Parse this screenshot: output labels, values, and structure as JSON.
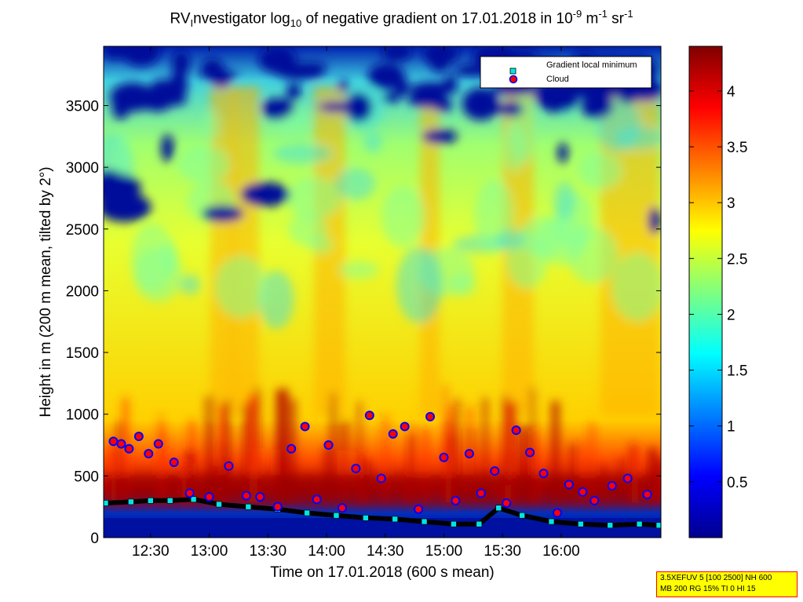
{
  "title": {
    "prefix": "RV",
    "sub1": "I",
    "middle": "nvestigator log",
    "sub2": "10",
    "rest": " of negative gradient on 17.01.2018 in 10",
    "sup1": "-9",
    "unit1": " m",
    "sup2": "-1",
    "unit2": " sr",
    "sup3": "-1"
  },
  "info_box": {
    "line1": "3.5XEFUV 5 [100 2500] NH 600",
    "line2": "MB 200 RG 15% TI 0 HI 15"
  },
  "colors": {
    "point_marker_fill": "#00e5e5",
    "cloud_marker_fill": "#ff0000",
    "cloud_marker_edge": "#0000ff",
    "dark_line": "#000000"
  },
  "chart_data": {
    "type": "heatmap",
    "xlabel": "Time on 17.01.2018 (600 s mean)",
    "ylabel": "Height in m (200 m mean, tilted by 2°)",
    "x_ticks": [
      "12:30",
      "13:00",
      "13:30",
      "14:00",
      "14:30",
      "15:00",
      "15:30",
      "16:00"
    ],
    "x_tick_minutes": [
      750,
      780,
      810,
      840,
      870,
      900,
      930,
      960
    ],
    "xlim_minutes": [
      726,
      1011
    ],
    "y_ticks": [
      0,
      500,
      1000,
      1500,
      2000,
      2500,
      3000,
      3500
    ],
    "ylim": [
      0,
      3980
    ],
    "colorbar": {
      "colormap": "jet",
      "range": [
        0,
        4.4
      ],
      "ticks": [
        0.5,
        1,
        1.5,
        2,
        2.5,
        3,
        3.5,
        4
      ]
    },
    "legend": {
      "position": "top-right",
      "entries": [
        "Gradient local minimum",
        "Cloud"
      ]
    },
    "series": [
      {
        "name": "Gradient local minimum",
        "marker": "square",
        "x": [
          727,
          740,
          750,
          760,
          772,
          785,
          800,
          815,
          830,
          845,
          860,
          875,
          890,
          905,
          918,
          928,
          940,
          955,
          970,
          985,
          1000,
          1010
        ],
        "y": [
          280,
          290,
          300,
          300,
          310,
          270,
          250,
          230,
          200,
          180,
          160,
          150,
          130,
          110,
          110,
          240,
          180,
          130,
          110,
          100,
          110,
          100
        ]
      },
      {
        "name": "Cloud",
        "marker": "circle",
        "x": [
          731,
          735,
          739,
          744,
          749,
          754,
          762,
          770,
          780,
          790,
          799,
          806,
          815,
          822,
          829,
          835,
          841,
          848,
          855,
          862,
          868,
          874,
          880,
          887,
          893,
          900,
          906,
          913,
          919,
          926,
          932,
          937,
          944,
          951,
          958,
          964,
          971,
          977,
          986,
          994,
          1004
        ],
        "y": [
          780,
          760,
          720,
          820,
          680,
          760,
          610,
          360,
          330,
          580,
          340,
          330,
          250,
          720,
          900,
          310,
          750,
          240,
          560,
          990,
          480,
          840,
          900,
          230,
          980,
          650,
          300,
          680,
          360,
          540,
          280,
          870,
          690,
          520,
          200,
          430,
          370,
          300,
          420,
          480,
          350
        ]
      }
    ]
  }
}
